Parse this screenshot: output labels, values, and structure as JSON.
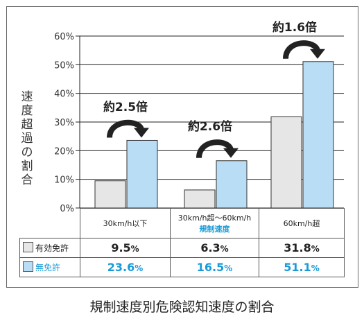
{
  "chart_data": {
    "type": "bar",
    "title": "",
    "ylabel": "速度超過の割合",
    "ylim": [
      0,
      60
    ],
    "yticks": [
      "0%",
      "10%",
      "20%",
      "30%",
      "40%",
      "50%",
      "60%"
    ],
    "grid": true,
    "categories": [
      "30km/h以下",
      "30km/h超〜60km/h",
      "60km/h超"
    ],
    "category_sub": [
      "",
      "規制速度",
      ""
    ],
    "series": [
      {
        "name": "有効免許",
        "values": [
          9.5,
          6.3,
          31.8
        ],
        "color": "#e6e6e6"
      },
      {
        "name": "無免許",
        "values": [
          23.6,
          16.5,
          51.1
        ],
        "color": "#b9ddf4"
      }
    ],
    "annotations": [
      "約2.5倍",
      "約2.6倍",
      "約1.6倍"
    ],
    "table_values": {
      "gray": [
        "9.5",
        "6.3",
        "31.8"
      ],
      "blue": [
        "23.6",
        "16.5",
        "51.1"
      ],
      "unit": "%"
    }
  },
  "caption": "規制速度別危険認知速度の割合",
  "colors": {
    "accent_blue": "#1a9bd7",
    "bar_gray": "#e6e6e6",
    "bar_blue": "#b9ddf4"
  }
}
